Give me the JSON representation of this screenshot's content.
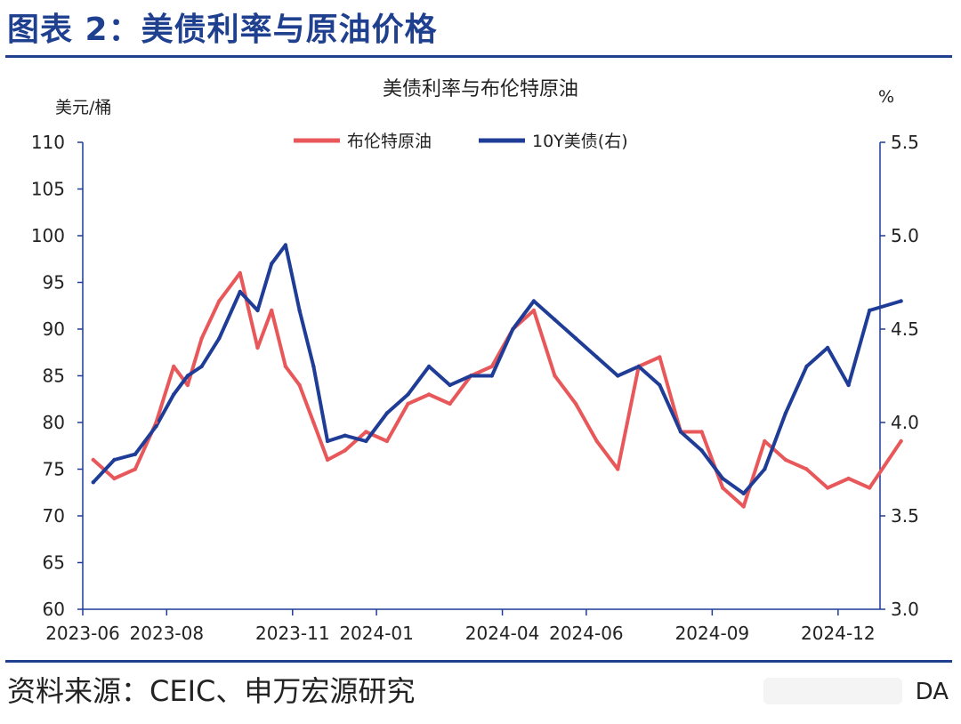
{
  "figure_title": "图表 2：美债利率与原油价格",
  "source_text": "资料来源：CEIC、申万宏源研究",
  "corner_mark": "DA",
  "colors": {
    "accent": "#1f3f8f",
    "brent": "#e8585a",
    "treasury": "#1f3c96",
    "axis": "#1f3c96"
  },
  "chart_data": {
    "type": "line",
    "title": "美债利率与布伦特原油",
    "y_left_unit": "美元/桶",
    "y_right_unit": "%",
    "ylim_left": [
      60,
      110
    ],
    "ylim_right": [
      3.0,
      5.5
    ],
    "y_left_ticks": [
      "110",
      "105",
      "100",
      "95",
      "90",
      "85",
      "80",
      "75",
      "70",
      "65",
      "60"
    ],
    "y_right_ticks": [
      "5.5",
      "5.0",
      "4.5",
      "4.0",
      "3.5",
      "3.0"
    ],
    "x_ticks": [
      "2023-06",
      "2023-08",
      "2023-11",
      "2024-01",
      "2024-04",
      "2024-06",
      "2024-09",
      "2024-12"
    ],
    "x_range": [
      "2023-06",
      "2024-12"
    ],
    "grid": false,
    "legend": "top-center",
    "series": [
      {
        "name": "布伦特原油",
        "axis": "left",
        "x": [
          "2023-06",
          "2023-06",
          "2023-07",
          "2023-07",
          "2023-08",
          "2023-08",
          "2023-08",
          "2023-09",
          "2023-09",
          "2023-10",
          "2023-10",
          "2023-10",
          "2023-11",
          "2023-11",
          "2023-11",
          "2023-12",
          "2023-12",
          "2024-01",
          "2024-01",
          "2024-02",
          "2024-02",
          "2024-03",
          "2024-03",
          "2024-04",
          "2024-04",
          "2024-05",
          "2024-05",
          "2024-06",
          "2024-06",
          "2024-07",
          "2024-07",
          "2024-08",
          "2024-08",
          "2024-09",
          "2024-09",
          "2024-10",
          "2024-10",
          "2024-11",
          "2024-11",
          "2024-12",
          "2024-12",
          "2025-01"
        ],
        "values": [
          76,
          74,
          75,
          80,
          86,
          84,
          89,
          93,
          96,
          88,
          92,
          86,
          84,
          80,
          76,
          77,
          79,
          78,
          82,
          83,
          82,
          85,
          86,
          90,
          92,
          85,
          82,
          78,
          75,
          86,
          87,
          79,
          79,
          73,
          71,
          78,
          76,
          75,
          73,
          74,
          73,
          78
        ]
      },
      {
        "name": "10Y美债(右)",
        "axis": "right",
        "x": [
          "2023-06",
          "2023-06",
          "2023-07",
          "2023-07",
          "2023-08",
          "2023-08",
          "2023-08",
          "2023-09",
          "2023-09",
          "2023-10",
          "2023-10",
          "2023-10",
          "2023-11",
          "2023-11",
          "2023-11",
          "2023-12",
          "2023-12",
          "2024-01",
          "2024-01",
          "2024-02",
          "2024-02",
          "2024-03",
          "2024-03",
          "2024-04",
          "2024-04",
          "2024-05",
          "2024-05",
          "2024-06",
          "2024-06",
          "2024-07",
          "2024-07",
          "2024-08",
          "2024-08",
          "2024-09",
          "2024-09",
          "2024-10",
          "2024-10",
          "2024-11",
          "2024-11",
          "2024-12",
          "2024-12",
          "2025-01"
        ],
        "values": [
          3.68,
          3.8,
          3.83,
          3.98,
          4.15,
          4.25,
          4.3,
          4.45,
          4.7,
          4.6,
          4.85,
          4.95,
          4.6,
          4.3,
          3.9,
          3.93,
          3.9,
          4.05,
          4.15,
          4.3,
          4.2,
          4.25,
          4.25,
          4.5,
          4.65,
          4.55,
          4.45,
          4.35,
          4.25,
          4.3,
          4.2,
          3.95,
          3.85,
          3.7,
          3.62,
          3.75,
          4.05,
          4.3,
          4.4,
          4.2,
          4.6,
          4.65
        ]
      }
    ]
  }
}
